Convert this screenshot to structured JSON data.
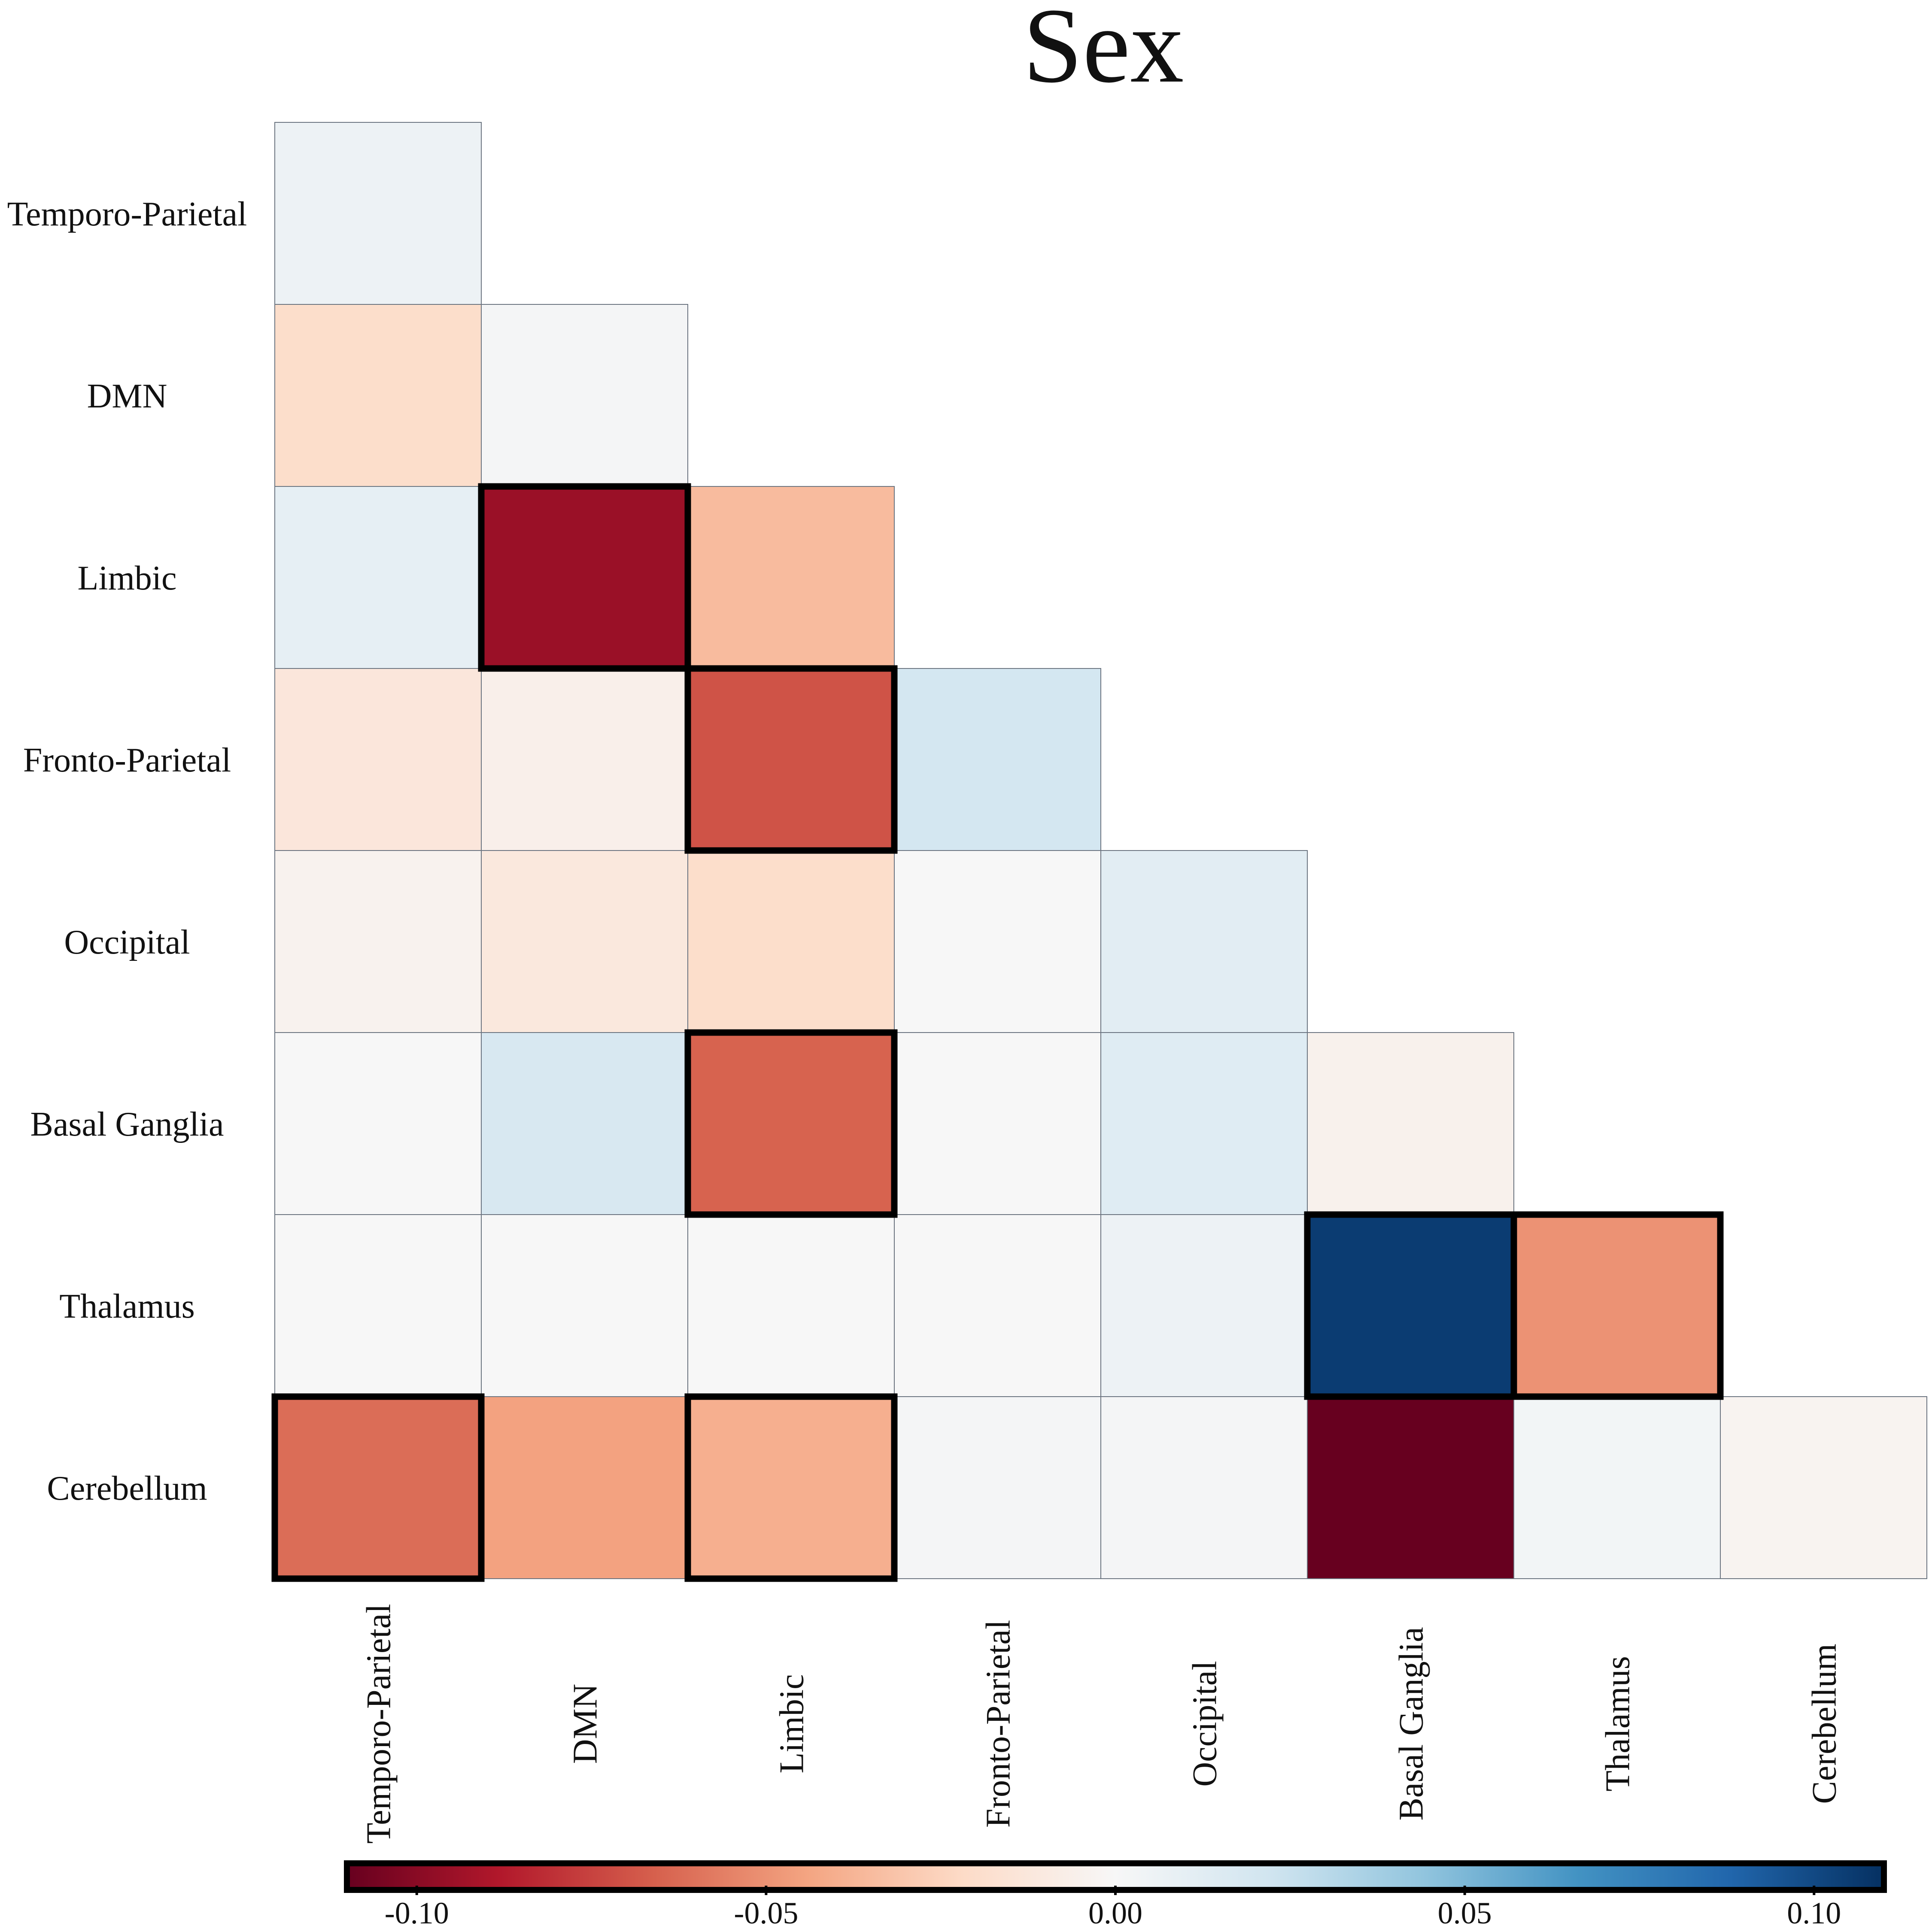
{
  "chart_data": {
    "type": "heatmap",
    "title": "Sex",
    "rows": [
      "Temporo-Parietal",
      "DMN",
      "Limbic",
      "Fronto-Parietal",
      "Occipital",
      "Basal Ganglia",
      "Thalamus",
      "Cerebellum"
    ],
    "columns": [
      "Temporo-Parietal",
      "DMN",
      "Limbic",
      "Fronto-Parietal",
      "Occipital",
      "Basal Ganglia",
      "Thalamus",
      "Cerebellum"
    ],
    "triangle": "lower",
    "values": [
      [
        0.006
      ],
      [
        -0.02,
        0.002
      ],
      [
        0.01,
        -0.095,
        -0.035
      ],
      [
        -0.013,
        -0.006,
        -0.07,
        0.02
      ],
      [
        -0.004,
        -0.012,
        -0.02,
        0.0,
        0.012
      ],
      [
        0.0,
        0.018,
        -0.065,
        0.0,
        0.014,
        -0.005
      ],
      [
        0.0,
        0.0,
        0.0,
        0.0,
        0.006,
        0.105,
        -0.05
      ],
      [
        -0.062,
        -0.045,
        -0.04,
        0.002,
        0.002,
        -0.11,
        0.003,
        -0.003
      ]
    ],
    "highlighted": [
      [
        2,
        1
      ],
      [
        3,
        2
      ],
      [
        5,
        2
      ],
      [
        6,
        5
      ],
      [
        6,
        6
      ],
      [
        7,
        0
      ],
      [
        7,
        2
      ]
    ],
    "colorbar": {
      "ticks": [
        "-0.10",
        "-0.05",
        "0.00",
        "0.05",
        "0.10"
      ],
      "tick_values": [
        -0.1,
        -0.05,
        0,
        0.05,
        0.1
      ],
      "range": [
        -0.11,
        0.11
      ],
      "colormap": "RdBu",
      "orientation": "horizontal",
      "position": "bottom"
    }
  }
}
